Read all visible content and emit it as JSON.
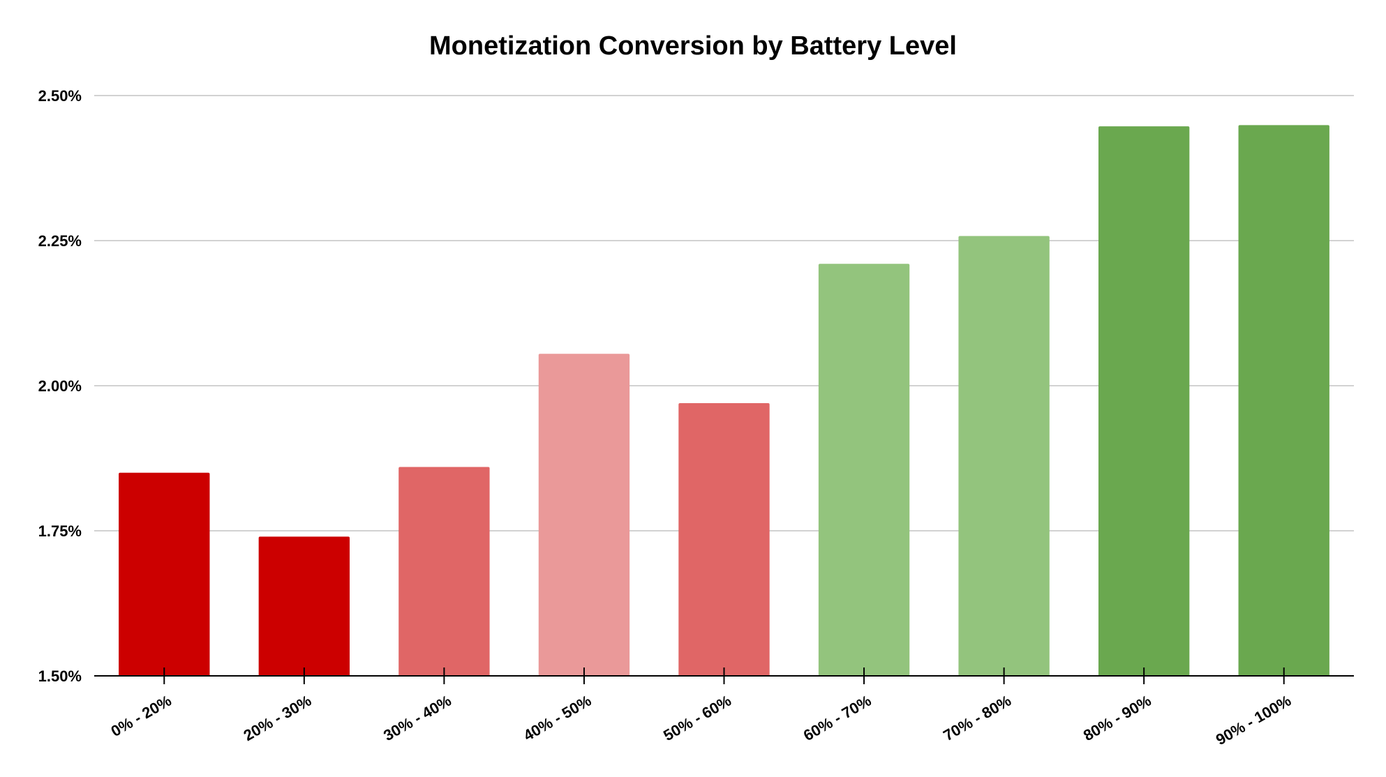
{
  "chart_data": {
    "type": "bar",
    "title": "Monetization Conversion by Battery Level",
    "xlabel": "",
    "ylabel": "",
    "categories": [
      "0% - 20%",
      "20% - 30%",
      "30% - 40%",
      "40% - 50%",
      "50% - 60%",
      "60% - 70%",
      "70% - 80%",
      "80% - 90%",
      "90% - 100%"
    ],
    "values": [
      1.85,
      1.74,
      1.86,
      2.055,
      1.97,
      2.21,
      2.258,
      2.447,
      2.449
    ],
    "value_unit": "%",
    "ylim": [
      1.5,
      2.5
    ],
    "yticks": [
      1.5,
      1.75,
      2.0,
      2.25,
      2.5
    ],
    "ytick_labels": [
      "1.50%",
      "1.75%",
      "2.00%",
      "2.25%",
      "2.50%"
    ],
    "grid": true,
    "legend": "none",
    "bar_colors": [
      "#cc0000",
      "#cc0000",
      "#e06666",
      "#ea9999",
      "#e06666",
      "#93c47d",
      "#93c47d",
      "#6aa84f",
      "#6aa84f"
    ]
  }
}
